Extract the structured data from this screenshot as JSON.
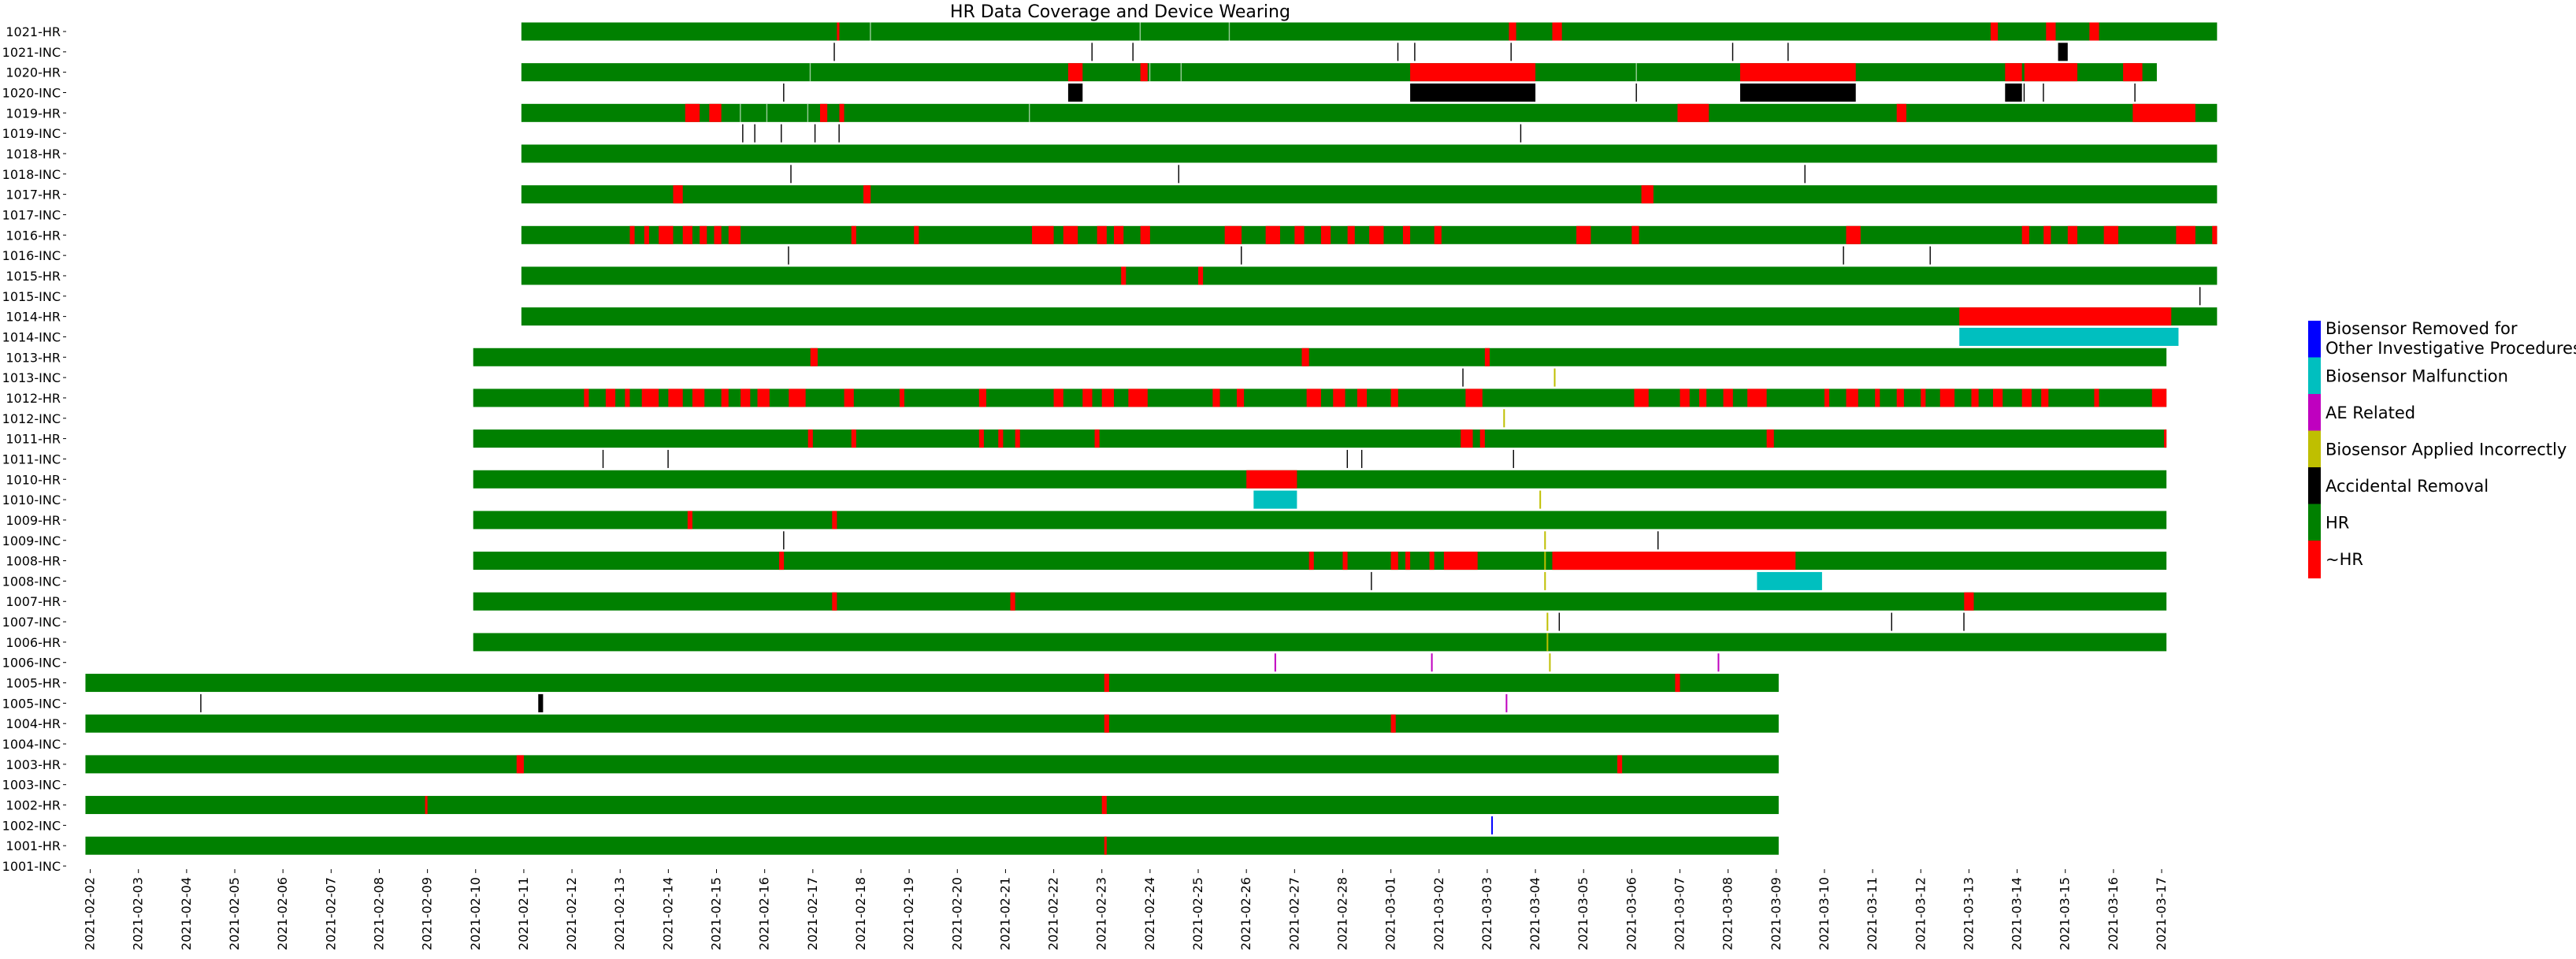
{
  "chart_data": {
    "type": "heatmap",
    "title": "HR Data Coverage and Device Wearing",
    "xlabel": "",
    "ylabel": "",
    "x_range": [
      "2021-02-02",
      "2021-03-17"
    ],
    "grid": false,
    "legend_position": "right",
    "x_ticks": [
      "2021-02-02",
      "2021-02-03",
      "2021-02-04",
      "2021-02-05",
      "2021-02-06",
      "2021-02-07",
      "2021-02-08",
      "2021-02-09",
      "2021-02-10",
      "2021-02-11",
      "2021-02-12",
      "2021-02-13",
      "2021-02-14",
      "2021-02-15",
      "2021-02-16",
      "2021-02-17",
      "2021-02-18",
      "2021-02-19",
      "2021-02-20",
      "2021-02-21",
      "2021-02-22",
      "2021-02-23",
      "2021-02-24",
      "2021-02-25",
      "2021-02-26",
      "2021-02-27",
      "2021-02-28",
      "2021-03-01",
      "2021-03-02",
      "2021-03-03",
      "2021-03-04",
      "2021-03-05",
      "2021-03-06",
      "2021-03-07",
      "2021-03-08",
      "2021-03-09",
      "2021-03-10",
      "2021-03-11",
      "2021-03-12",
      "2021-03-13",
      "2021-03-14",
      "2021-03-15",
      "2021-03-16",
      "2021-03-17"
    ],
    "legend": [
      {
        "label": "Biosensor Removed for\nOther Investigative Procedures",
        "color": "#0000ff"
      },
      {
        "label": "Biosensor Malfunction",
        "color": "#00bfbf"
      },
      {
        "label": "AE Related",
        "color": "#bf00bf"
      },
      {
        "label": "Biosensor Applied Incorrectly",
        "color": "#bfbf00"
      },
      {
        "label": "Accidental Removal",
        "color": "#000000"
      },
      {
        "label": "HR",
        "color": "#008000"
      },
      {
        "label": "~HR",
        "color": "#ff0000"
      }
    ],
    "colors": {
      "hr": "#008000",
      "no_hr": "#ff0000",
      "removed_other": "#0000ff",
      "malfunction": "#00bfbf",
      "ae": "#bf00bf",
      "applied_incorrectly": "#bfbf00",
      "accidental": "#000000"
    },
    "rows": [
      {
        "label": "1021-HR",
        "kind": "hr",
        "start": 9.45,
        "end": 44.65,
        "segments": [
          [
            16.0,
            16.05
          ],
          [
            29.95,
            30.1
          ],
          [
            30.85,
            31.05
          ],
          [
            39.95,
            40.1
          ],
          [
            41.1,
            41.3
          ],
          [
            42.0,
            42.2
          ]
        ],
        "lines": [
          16.7,
          22.3,
          24.15
        ]
      },
      {
        "label": "1021-INC",
        "kind": "inc",
        "segments": [
          [
            41.35,
            41.55,
            "accidental"
          ]
        ],
        "lines": [
          15.95,
          21.3,
          22.15,
          27.65,
          28.0,
          30.0,
          34.6,
          35.75
        ]
      },
      {
        "label": "1020-HR",
        "kind": "hr",
        "start": 9.45,
        "end": 43.4,
        "segments": [
          [
            20.8,
            21.1
          ],
          [
            22.3,
            22.45
          ],
          [
            27.9,
            30.5
          ],
          [
            34.75,
            37.15
          ],
          [
            40.25,
            40.6
          ],
          [
            40.65,
            41.75
          ],
          [
            42.7,
            43.1
          ]
        ],
        "lines": [
          15.45,
          22.5,
          23.15,
          32.6
        ]
      },
      {
        "label": "1020-INC",
        "kind": "inc",
        "segments": [
          [
            20.8,
            21.1,
            "accidental"
          ],
          [
            27.9,
            30.5,
            "accidental"
          ],
          [
            34.75,
            37.15,
            "accidental"
          ],
          [
            40.25,
            40.6,
            "accidental"
          ]
        ],
        "lines": [
          14.9,
          32.6,
          40.65,
          41.05,
          42.95
        ]
      },
      {
        "label": "1019-HR",
        "kind": "hr",
        "start": 9.45,
        "end": 44.65,
        "segments": [
          [
            12.85,
            13.15
          ],
          [
            13.35,
            13.6
          ],
          [
            15.65,
            15.8
          ],
          [
            16.05,
            16.15
          ],
          [
            33.45,
            34.1
          ],
          [
            38.0,
            38.2
          ],
          [
            42.9,
            44.2
          ]
        ],
        "lines": [
          14.0,
          14.55,
          15.4,
          20.0
        ]
      },
      {
        "label": "1019-INC",
        "kind": "inc",
        "segments": [],
        "lines": [
          14.05,
          14.3,
          14.85,
          15.55,
          16.05,
          30.2
        ]
      },
      {
        "label": "1018-HR",
        "kind": "hr",
        "start": 9.45,
        "end": 44.65,
        "segments": [],
        "lines": []
      },
      {
        "label": "1018-INC",
        "kind": "inc",
        "segments": [],
        "lines": [
          15.05,
          23.1,
          36.1
        ]
      },
      {
        "label": "1017-HR",
        "kind": "hr",
        "start": 9.45,
        "end": 44.65,
        "segments": [
          [
            12.6,
            12.8
          ],
          [
            16.55,
            16.7
          ],
          [
            32.7,
            32.95
          ]
        ],
        "lines": []
      },
      {
        "label": "1017-INC",
        "kind": "inc",
        "segments": [],
        "lines": []
      },
      {
        "label": "1016-HR",
        "kind": "hr",
        "start": 9.45,
        "end": 44.65,
        "segments": [
          [
            11.7,
            11.8
          ],
          [
            12.0,
            12.1
          ],
          [
            12.3,
            12.6
          ],
          [
            12.8,
            13.0
          ],
          [
            13.15,
            13.3
          ],
          [
            13.45,
            13.6
          ],
          [
            13.75,
            14.0
          ],
          [
            16.3,
            16.4
          ],
          [
            17.6,
            17.7
          ],
          [
            20.05,
            20.5
          ],
          [
            20.7,
            21.0
          ],
          [
            21.4,
            21.6
          ],
          [
            21.75,
            21.95
          ],
          [
            22.3,
            22.5
          ],
          [
            24.05,
            24.4
          ],
          [
            24.9,
            25.2
          ],
          [
            25.5,
            25.7
          ],
          [
            26.05,
            26.25
          ],
          [
            26.6,
            26.75
          ],
          [
            27.05,
            27.35
          ],
          [
            27.75,
            27.9
          ],
          [
            28.4,
            28.55
          ],
          [
            31.35,
            31.65
          ],
          [
            32.5,
            32.65
          ],
          [
            36.95,
            37.25
          ],
          [
            40.6,
            40.75
          ],
          [
            41.05,
            41.2
          ],
          [
            41.55,
            41.75
          ],
          [
            42.3,
            42.6
          ],
          [
            43.8,
            44.2
          ],
          [
            44.55,
            44.65
          ]
        ],
        "lines": []
      },
      {
        "label": "1016-INC",
        "kind": "inc",
        "segments": [],
        "lines": [
          15.0,
          24.4,
          36.9,
          38.7
        ]
      },
      {
        "label": "1015-HR",
        "kind": "hr",
        "start": 9.45,
        "end": 44.65,
        "segments": [
          [
            21.9,
            22.0
          ],
          [
            23.5,
            23.6
          ]
        ],
        "lines": []
      },
      {
        "label": "1015-INC",
        "kind": "inc",
        "segments": [],
        "lines": [
          44.3
        ]
      },
      {
        "label": "1014-HR",
        "kind": "hr",
        "start": 9.45,
        "end": 44.65,
        "segments": [
          [
            39.3,
            43.7
          ]
        ],
        "lines": []
      },
      {
        "label": "1014-INC",
        "kind": "inc",
        "segments": [
          [
            39.3,
            43.85,
            "malfunction"
          ]
        ],
        "lines": []
      },
      {
        "label": "1013-HR",
        "kind": "hr",
        "start": 8.45,
        "end": 43.6,
        "segments": [
          [
            15.45,
            15.6
          ],
          [
            25.65,
            25.8
          ],
          [
            29.45,
            29.55
          ]
        ],
        "lines": []
      },
      {
        "label": "1013-INC",
        "kind": "inc",
        "segments": [],
        "lines": [
          29.0,
          [
            30.9,
            "applied_incorrectly"
          ]
        ]
      },
      {
        "label": "1012-HR",
        "kind": "hr",
        "start": 8.45,
        "end": 43.6,
        "segments": [
          [
            10.75,
            10.85
          ],
          [
            11.2,
            11.4
          ],
          [
            11.6,
            11.7
          ],
          [
            11.95,
            12.3
          ],
          [
            12.5,
            12.8
          ],
          [
            13.0,
            13.25
          ],
          [
            13.6,
            13.75
          ],
          [
            14.0,
            14.2
          ],
          [
            14.35,
            14.6
          ],
          [
            15.0,
            15.35
          ],
          [
            16.15,
            16.35
          ],
          [
            17.3,
            17.4
          ],
          [
            18.95,
            19.1
          ],
          [
            20.5,
            20.7
          ],
          [
            21.1,
            21.3
          ],
          [
            21.5,
            21.75
          ],
          [
            22.05,
            22.45
          ],
          [
            23.8,
            23.95
          ],
          [
            24.3,
            24.45
          ],
          [
            25.75,
            26.05
          ],
          [
            26.3,
            26.55
          ],
          [
            26.8,
            27.0
          ],
          [
            27.5,
            27.65
          ],
          [
            29.05,
            29.4
          ],
          [
            32.55,
            32.85
          ],
          [
            33.5,
            33.7
          ],
          [
            33.9,
            34.05
          ],
          [
            34.4,
            34.6
          ],
          [
            34.9,
            35.3
          ],
          [
            36.5,
            36.6
          ],
          [
            36.95,
            37.2
          ],
          [
            37.55,
            37.65
          ],
          [
            38.0,
            38.15
          ],
          [
            38.5,
            38.6
          ],
          [
            38.9,
            39.2
          ],
          [
            39.55,
            39.7
          ],
          [
            40.0,
            40.2
          ],
          [
            40.6,
            40.8
          ],
          [
            41.0,
            41.15
          ],
          [
            42.1,
            42.2
          ],
          [
            43.3,
            43.6
          ]
        ],
        "lines": []
      },
      {
        "label": "1012-INC",
        "kind": "inc",
        "segments": [],
        "lines": [
          [
            29.85,
            "applied_incorrectly"
          ]
        ]
      },
      {
        "label": "1011-HR",
        "kind": "hr",
        "start": 8.45,
        "end": 43.6,
        "segments": [
          [
            15.4,
            15.5
          ],
          [
            16.3,
            16.4
          ],
          [
            18.95,
            19.05
          ],
          [
            19.35,
            19.45
          ],
          [
            19.7,
            19.8
          ],
          [
            21.35,
            21.45
          ],
          [
            28.95,
            29.2
          ],
          [
            29.35,
            29.45
          ],
          [
            35.3,
            35.45
          ],
          [
            43.55,
            43.6
          ]
        ],
        "lines": []
      },
      {
        "label": "1011-INC",
        "kind": "inc",
        "segments": [],
        "lines": [
          11.15,
          12.5,
          26.6,
          26.9,
          30.05
        ]
      },
      {
        "label": "1010-HR",
        "kind": "hr",
        "start": 8.45,
        "end": 43.6,
        "segments": [
          [
            24.5,
            25.55
          ]
        ],
        "lines": []
      },
      {
        "label": "1010-INC",
        "kind": "inc",
        "segments": [
          [
            24.65,
            25.55,
            "malfunction"
          ]
        ],
        "lines": [
          [
            30.6,
            "applied_incorrectly"
          ]
        ]
      },
      {
        "label": "1009-HR",
        "kind": "hr",
        "start": 8.45,
        "end": 43.6,
        "segments": [
          [
            12.9,
            13.0
          ],
          [
            15.9,
            16.0
          ]
        ],
        "lines": []
      },
      {
        "label": "1009-INC",
        "kind": "inc",
        "segments": [],
        "lines": [
          14.9,
          33.05,
          [
            30.7,
            "applied_incorrectly"
          ]
        ]
      },
      {
        "label": "1008-HR",
        "kind": "hr",
        "start": 8.45,
        "end": 43.6,
        "segments": [
          [
            14.8,
            14.9
          ],
          [
            25.8,
            25.9
          ],
          [
            26.5,
            26.6
          ],
          [
            27.5,
            27.65
          ],
          [
            27.8,
            27.9
          ],
          [
            28.3,
            28.4
          ],
          [
            28.6,
            29.3
          ],
          [
            30.85,
            35.9
          ]
        ],
        "lines": [
          [
            30.7,
            "applied_incorrectly"
          ]
        ]
      },
      {
        "label": "1008-INC",
        "kind": "inc",
        "segments": [
          [
            35.1,
            36.45,
            "malfunction"
          ]
        ],
        "lines": [
          27.1,
          [
            30.7,
            "applied_incorrectly"
          ]
        ]
      },
      {
        "label": "1007-HR",
        "kind": "hr",
        "start": 8.45,
        "end": 43.6,
        "segments": [
          [
            15.9,
            16.0
          ],
          [
            19.6,
            19.7
          ],
          [
            39.4,
            39.6
          ]
        ],
        "lines": []
      },
      {
        "label": "1007-INC",
        "kind": "inc",
        "segments": [],
        "lines": [
          31.0,
          37.9,
          39.4,
          [
            30.75,
            "applied_incorrectly"
          ]
        ]
      },
      {
        "label": "1006-HR",
        "kind": "hr",
        "start": 8.45,
        "end": 43.6,
        "segments": [],
        "lines": [
          [
            30.75,
            "applied_incorrectly"
          ]
        ]
      },
      {
        "label": "1006-INC",
        "kind": "inc",
        "segments": [],
        "lines": [
          [
            25.1,
            "ae"
          ],
          [
            28.35,
            "ae"
          ],
          [
            34.3,
            "ae"
          ],
          [
            30.8,
            "applied_incorrectly"
          ]
        ]
      },
      {
        "label": "1005-HR",
        "kind": "hr",
        "start": 0.4,
        "end": 35.55,
        "segments": [
          [
            21.55,
            21.65
          ],
          [
            33.4,
            33.5
          ]
        ],
        "lines": []
      },
      {
        "label": "1005-INC",
        "kind": "inc",
        "segments": [
          [
            9.8,
            9.9,
            "accidental"
          ]
        ],
        "lines": [
          2.8,
          [
            29.9,
            "ae"
          ]
        ]
      },
      {
        "label": "1004-HR",
        "kind": "hr",
        "start": 0.4,
        "end": 35.55,
        "segments": [
          [
            21.55,
            21.65
          ],
          [
            27.5,
            27.6
          ]
        ],
        "lines": []
      },
      {
        "label": "1004-INC",
        "kind": "inc",
        "segments": [],
        "lines": []
      },
      {
        "label": "1003-HR",
        "kind": "hr",
        "start": 0.4,
        "end": 35.55,
        "segments": [
          [
            9.35,
            9.5
          ],
          [
            32.2,
            32.3
          ]
        ],
        "lines": []
      },
      {
        "label": "1003-INC",
        "kind": "inc",
        "segments": [],
        "lines": []
      },
      {
        "label": "1002-HR",
        "kind": "hr",
        "start": 0.4,
        "end": 35.55,
        "segments": [
          [
            7.45,
            7.5
          ],
          [
            21.5,
            21.6
          ]
        ],
        "lines": []
      },
      {
        "label": "1002-INC",
        "kind": "inc",
        "segments": [],
        "lines": [
          [
            29.6,
            "removed_other"
          ]
        ]
      },
      {
        "label": "1001-HR",
        "kind": "hr",
        "start": 0.4,
        "end": 35.55,
        "segments": [
          [
            21.55,
            21.6
          ]
        ],
        "lines": []
      },
      {
        "label": "1001-INC",
        "kind": "inc",
        "segments": [],
        "lines": []
      }
    ]
  }
}
